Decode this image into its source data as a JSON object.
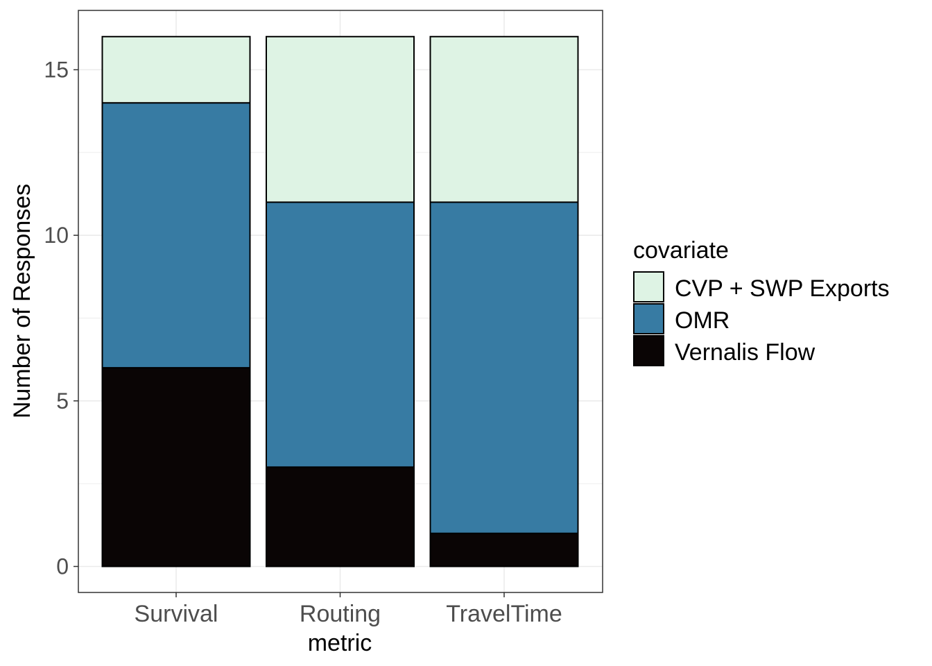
{
  "chart_data": {
    "type": "bar",
    "stacked": true,
    "categories": [
      "Survival",
      "Routing",
      "TravelTime"
    ],
    "series": [
      {
        "name": "Vernalis Flow",
        "values": [
          6,
          3,
          1
        ],
        "color": "#0a0505"
      },
      {
        "name": "OMR",
        "values": [
          8,
          8,
          10
        ],
        "color": "#377ba3"
      },
      {
        "name": "CVP + SWP Exports",
        "values": [
          2,
          5,
          5
        ],
        "color": "#def3e4"
      }
    ],
    "xlabel": "metric",
    "ylabel": "Number of Responses",
    "ylim": [
      -1.5,
      16.5
    ],
    "yticks": [
      "0",
      "5",
      "10",
      "15"
    ],
    "grid": true,
    "legend": {
      "title": "covariate",
      "position": "right",
      "items": [
        "CVP + SWP Exports",
        "OMR",
        "Vernalis Flow"
      ]
    }
  }
}
